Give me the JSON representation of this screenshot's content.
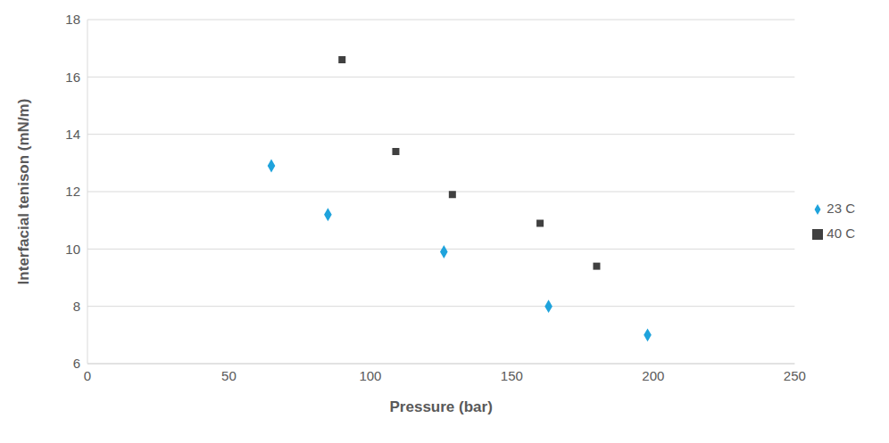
{
  "chart_data": {
    "type": "scatter",
    "x_label": "Pressure (bar)",
    "y_label": "Interfacial tenison (mN/m)",
    "xlim": [
      0,
      250
    ],
    "xticks": [
      0,
      50,
      100,
      150,
      200,
      250
    ],
    "ylim": [
      6,
      18
    ],
    "yticks": [
      6,
      8,
      10,
      12,
      14,
      16,
      18
    ],
    "grid": "y",
    "legend": "right",
    "series": [
      {
        "name": "23 C",
        "color": "#1fa3dc",
        "marker": "diamond",
        "x": [
          65,
          85,
          126,
          163,
          198
        ],
        "values": [
          12.9,
          11.2,
          9.9,
          8.0,
          7.0
        ]
      },
      {
        "name": "40 C",
        "color": "#404040",
        "marker": "square",
        "x": [
          90,
          109,
          129,
          160,
          180
        ],
        "values": [
          16.6,
          13.4,
          11.9,
          10.9,
          9.4
        ]
      }
    ]
  }
}
